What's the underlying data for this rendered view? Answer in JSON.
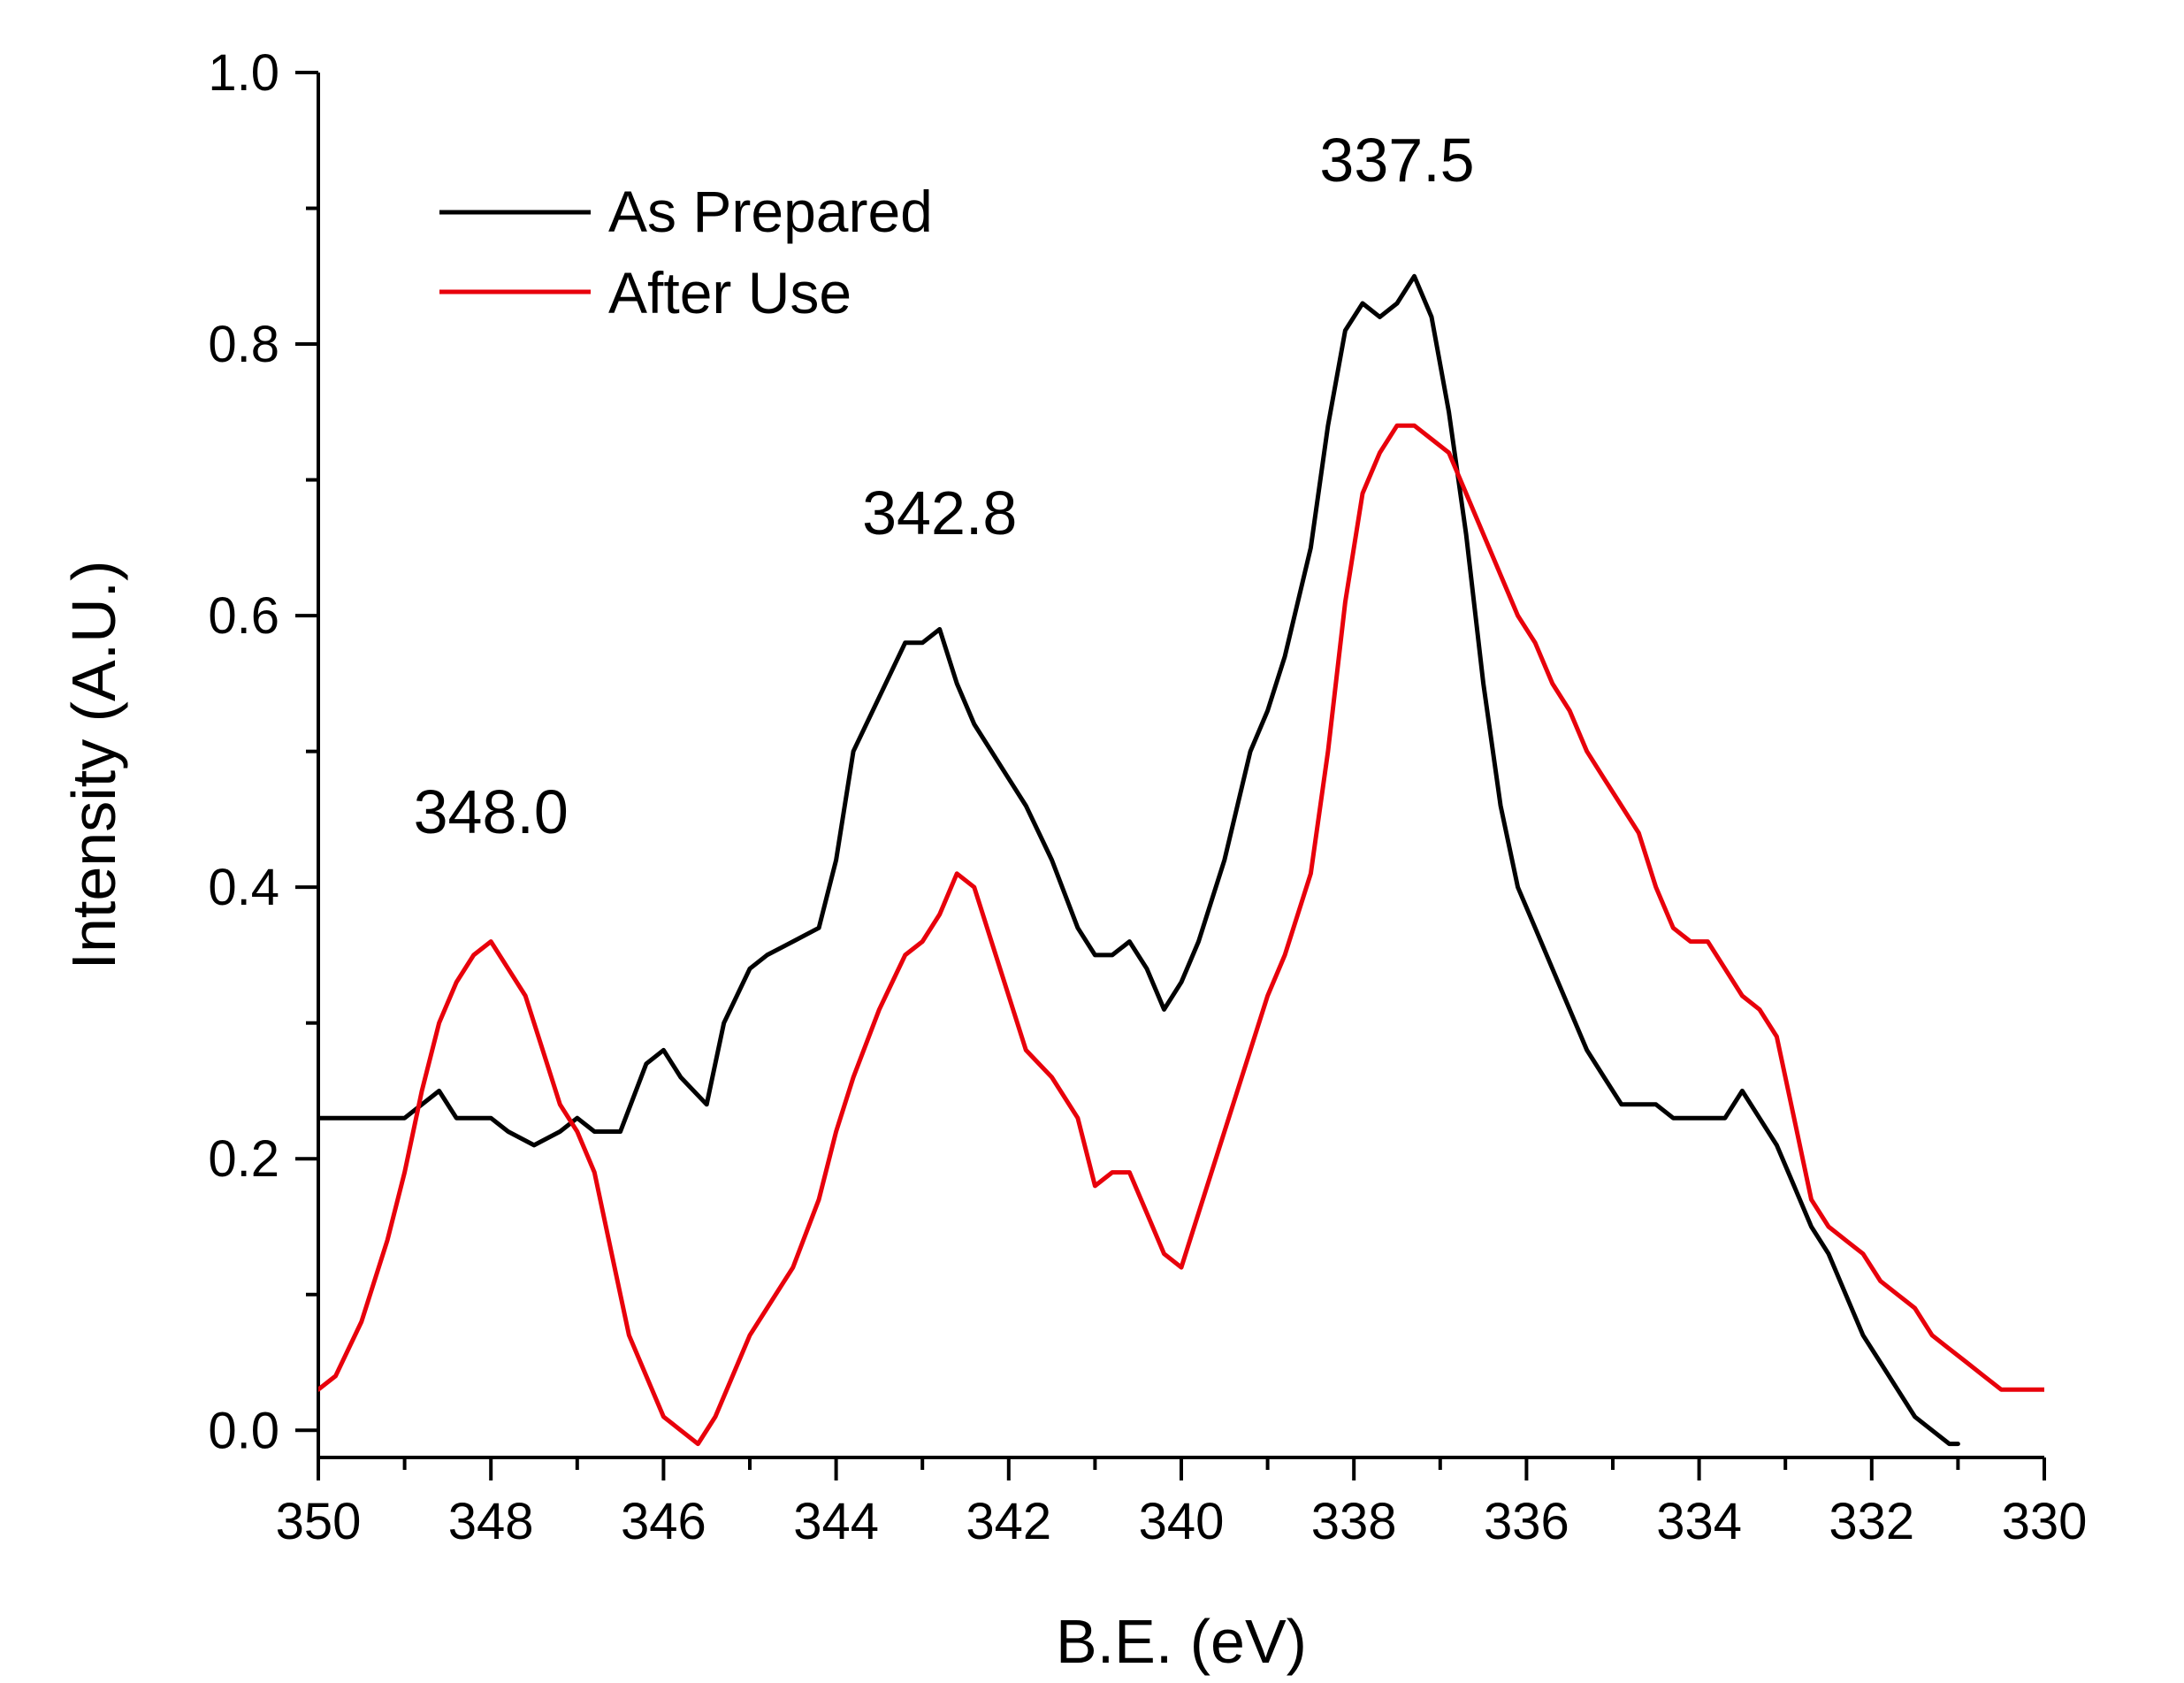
{
  "chart_data": {
    "type": "line",
    "title": "",
    "xlabel": "B.E. (eV)",
    "ylabel": "Intensity (A.U.)",
    "xlim": [
      350,
      330
    ],
    "ylim": [
      -0.02,
      1.0
    ],
    "x_reversed": true,
    "grid": false,
    "legend_position": "top-left",
    "x_ticks": [
      350,
      348,
      346,
      344,
      342,
      340,
      338,
      336,
      334,
      332,
      330
    ],
    "x_tick_labels": [
      "350",
      "348",
      "346",
      "344",
      "342",
      "340",
      "338",
      "336",
      "334",
      "332",
      "330"
    ],
    "y_ticks": [
      0.0,
      0.2,
      0.4,
      0.6,
      0.8,
      1.0
    ],
    "y_tick_labels": [
      "0.0",
      "0.2",
      "0.4",
      "0.6",
      "0.8",
      "1.0"
    ],
    "annotations": [
      {
        "text": "348.0",
        "x": 348.0,
        "y": 0.44
      },
      {
        "text": "342.8",
        "x": 342.8,
        "y": 0.66
      },
      {
        "text": "337.5",
        "x": 337.5,
        "y": 0.92
      }
    ],
    "series": [
      {
        "name": "As Prepared",
        "color": "#000000",
        "x": [
          350.0,
          349.5,
          349.0,
          348.6,
          348.4,
          348.2,
          348.0,
          347.8,
          347.5,
          347.2,
          347.0,
          346.8,
          346.5,
          346.2,
          346.0,
          345.8,
          345.5,
          345.3,
          345.0,
          344.8,
          344.5,
          344.2,
          344.0,
          343.8,
          343.5,
          343.2,
          343.0,
          342.8,
          342.6,
          342.4,
          342.2,
          342.0,
          341.8,
          341.5,
          341.2,
          341.0,
          340.8,
          340.6,
          340.4,
          340.2,
          340.0,
          339.8,
          339.5,
          339.2,
          339.0,
          338.8,
          338.5,
          338.3,
          338.1,
          337.9,
          337.7,
          337.5,
          337.3,
          337.1,
          336.9,
          336.7,
          336.5,
          336.3,
          336.1,
          335.9,
          335.7,
          335.5,
          335.3,
          335.1,
          334.9,
          334.7,
          334.5,
          334.3,
          334.1,
          333.9,
          333.7,
          333.5,
          333.3,
          333.1,
          332.9,
          332.7,
          332.5,
          332.3,
          332.1,
          331.9,
          331.7,
          331.5,
          331.3,
          331.1,
          331.0
        ],
        "y": [
          0.23,
          0.23,
          0.23,
          0.25,
          0.23,
          0.23,
          0.23,
          0.22,
          0.21,
          0.22,
          0.23,
          0.22,
          0.22,
          0.27,
          0.28,
          0.26,
          0.24,
          0.3,
          0.34,
          0.35,
          0.36,
          0.37,
          0.42,
          0.5,
          0.54,
          0.58,
          0.58,
          0.59,
          0.55,
          0.52,
          0.5,
          0.48,
          0.46,
          0.42,
          0.37,
          0.35,
          0.35,
          0.36,
          0.34,
          0.31,
          0.33,
          0.36,
          0.42,
          0.5,
          0.53,
          0.57,
          0.65,
          0.74,
          0.81,
          0.83,
          0.82,
          0.83,
          0.85,
          0.82,
          0.75,
          0.66,
          0.55,
          0.46,
          0.4,
          0.37,
          0.34,
          0.31,
          0.28,
          0.26,
          0.24,
          0.24,
          0.24,
          0.23,
          0.23,
          0.23,
          0.23,
          0.25,
          0.23,
          0.21,
          0.18,
          0.15,
          0.13,
          0.1,
          0.07,
          0.05,
          0.03,
          0.01,
          0.0,
          -0.01,
          -0.01
        ]
      },
      {
        "name": "After Use",
        "color": "#e8000b",
        "x": [
          350.0,
          349.8,
          349.5,
          349.2,
          349.0,
          348.8,
          348.6,
          348.4,
          348.2,
          348.0,
          347.8,
          347.6,
          347.4,
          347.2,
          347.0,
          346.8,
          346.6,
          346.4,
          346.2,
          346.0,
          345.8,
          345.6,
          345.4,
          345.2,
          345.0,
          344.8,
          344.5,
          344.2,
          344.0,
          343.8,
          343.5,
          343.2,
          343.0,
          342.8,
          342.6,
          342.4,
          342.2,
          342.0,
          341.8,
          341.5,
          341.2,
          341.0,
          340.8,
          340.6,
          340.4,
          340.2,
          340.0,
          339.8,
          339.5,
          339.2,
          339.0,
          338.8,
          338.5,
          338.3,
          338.1,
          337.9,
          337.7,
          337.5,
          337.3,
          337.1,
          336.9,
          336.7,
          336.5,
          336.3,
          336.1,
          335.9,
          335.7,
          335.5,
          335.3,
          335.1,
          334.9,
          334.7,
          334.5,
          334.3,
          334.1,
          333.9,
          333.7,
          333.5,
          333.3,
          333.1,
          332.9,
          332.7,
          332.5,
          332.3,
          332.1,
          331.9,
          331.7,
          331.5,
          331.3,
          331.1,
          330.9,
          330.7,
          330.5,
          330.3,
          330.1,
          330.0
        ],
        "y": [
          0.03,
          0.04,
          0.08,
          0.14,
          0.19,
          0.25,
          0.3,
          0.33,
          0.35,
          0.36,
          0.34,
          0.32,
          0.28,
          0.24,
          0.22,
          0.19,
          0.13,
          0.07,
          0.04,
          0.01,
          0.0,
          -0.01,
          0.01,
          0.04,
          0.07,
          0.09,
          0.12,
          0.17,
          0.22,
          0.26,
          0.31,
          0.35,
          0.36,
          0.38,
          0.41,
          0.4,
          0.36,
          0.32,
          0.28,
          0.26,
          0.23,
          0.18,
          0.19,
          0.19,
          0.16,
          0.13,
          0.12,
          0.16,
          0.22,
          0.28,
          0.32,
          0.35,
          0.41,
          0.5,
          0.61,
          0.69,
          0.72,
          0.74,
          0.74,
          0.73,
          0.72,
          0.69,
          0.66,
          0.63,
          0.6,
          0.58,
          0.55,
          0.53,
          0.5,
          0.48,
          0.46,
          0.44,
          0.4,
          0.37,
          0.36,
          0.36,
          0.34,
          0.32,
          0.31,
          0.29,
          0.23,
          0.17,
          0.15,
          0.14,
          0.13,
          0.11,
          0.1,
          0.09,
          0.07,
          0.06,
          0.05,
          0.04,
          0.03,
          0.03,
          0.03,
          0.03
        ]
      }
    ]
  }
}
